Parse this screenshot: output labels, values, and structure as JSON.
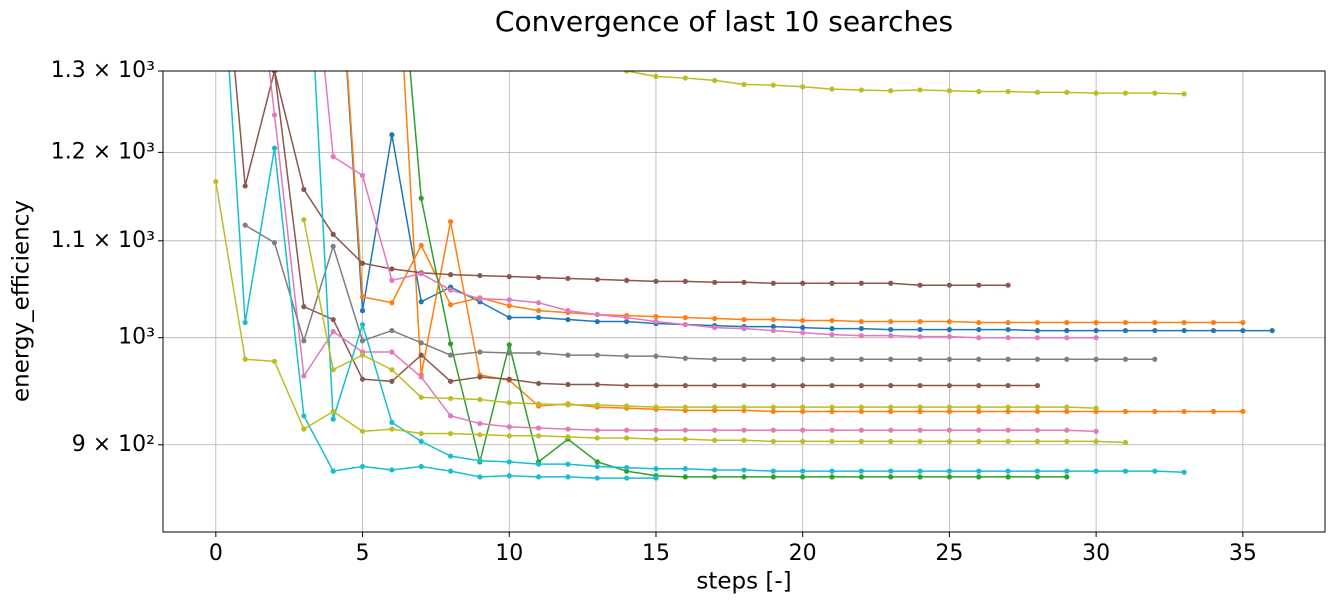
{
  "chart_data": {
    "type": "line",
    "title": "Convergence of last 10 searches",
    "xlabel": "steps [-]",
    "ylabel": "energy_efficiency",
    "yscale": "log",
    "grid": true,
    "xlim": [
      -1.8,
      37.8
    ],
    "ylim": [
      826,
      1300
    ],
    "xticks": [
      0,
      5,
      10,
      15,
      20,
      25,
      30,
      35
    ],
    "yticks": [
      {
        "value": 900,
        "label": "9 × 10²"
      },
      {
        "value": 1000,
        "label": "10³"
      },
      {
        "value": 1100,
        "label": "1.1 × 10³"
      },
      {
        "value": 1200,
        "label": "1.2 × 10³"
      },
      {
        "value": 1300,
        "label": "1.3 × 10³"
      }
    ],
    "series": [
      {
        "color": "#1f77b4",
        "x": [
          4,
          5,
          6,
          7,
          8,
          9,
          10,
          11,
          12,
          13,
          14,
          15,
          16,
          17,
          18,
          19,
          20,
          21,
          22,
          23,
          24,
          25,
          26,
          27,
          28,
          29,
          30,
          31,
          32,
          33,
          34,
          35,
          36
        ],
        "values": [
          1600,
          1027,
          1221,
          1036,
          1051,
          1036,
          1020,
          1020,
          1018,
          1016,
          1016,
          1014,
          1013,
          1012,
          1011,
          1011,
          1010,
          1009,
          1009,
          1008,
          1008,
          1008,
          1008,
          1008,
          1007,
          1007,
          1007,
          1007,
          1007,
          1007,
          1007,
          1007,
          1007
        ]
      },
      {
        "color": "#ff7f0e",
        "x": [
          4,
          5,
          6,
          7,
          8,
          9,
          10,
          11,
          12,
          13,
          14,
          15,
          16,
          17,
          18,
          19,
          20,
          21,
          22,
          23,
          24,
          25,
          26,
          27,
          28,
          29,
          30,
          31,
          32,
          33,
          34,
          35
        ],
        "values": [
          1600,
          1041,
          1035,
          1095,
          1033,
          1040,
          1032,
          1027,
          1025,
          1023,
          1022,
          1021,
          1020,
          1019,
          1018,
          1018,
          1017,
          1017,
          1016,
          1016,
          1016,
          1016,
          1015,
          1015,
          1015,
          1015,
          1015,
          1015,
          1015,
          1015,
          1015,
          1015
        ]
      },
      {
        "color": "#ff7f0e",
        "x": [
          6,
          7,
          8,
          9,
          10,
          11,
          12,
          13,
          14,
          15,
          16,
          17,
          18,
          19,
          20,
          21,
          22,
          23,
          24,
          25,
          26,
          27,
          28,
          29,
          30,
          31,
          32,
          33,
          34,
          35
        ],
        "values": [
          1600,
          964,
          1121,
          964,
          959,
          935,
          937,
          934,
          933,
          932,
          931,
          931,
          931,
          930,
          930,
          930,
          930,
          930,
          930,
          930,
          930,
          930,
          930,
          930,
          930,
          930,
          930,
          930,
          930,
          930
        ]
      },
      {
        "color": "#2ca02c",
        "x": [
          6,
          7,
          8,
          9,
          10,
          11,
          12,
          13,
          14,
          15,
          16,
          17,
          18,
          19,
          20,
          21,
          22,
          23,
          24,
          25,
          26,
          27,
          28,
          29
        ],
        "values": [
          1600,
          1147,
          994,
          885,
          993,
          885,
          905,
          885,
          877,
          873,
          872,
          872,
          872,
          872,
          872,
          872,
          872,
          872,
          872,
          872,
          872,
          872,
          872,
          872
        ]
      },
      {
        "color": "#8c564b",
        "x": [
          0,
          1,
          2,
          3,
          4,
          5,
          6,
          7,
          8,
          9,
          10,
          11,
          12,
          13,
          14,
          15,
          16,
          17,
          18,
          19,
          20,
          21,
          22,
          23,
          24,
          25,
          26,
          27
        ],
        "values": [
          1600,
          1161,
          1300,
          1157,
          1107,
          1076,
          1070,
          1066,
          1064,
          1063,
          1062,
          1061,
          1060,
          1059,
          1058,
          1057,
          1057,
          1056,
          1056,
          1055,
          1055,
          1055,
          1055,
          1055,
          1053,
          1053,
          1053,
          1053
        ]
      },
      {
        "color": "#8c564b",
        "x": [
          2,
          3,
          4,
          5,
          6,
          7,
          8,
          9,
          10,
          11,
          12,
          13,
          14,
          15,
          16,
          17,
          18,
          19,
          20,
          21,
          22,
          23,
          24,
          25,
          26,
          27,
          28
        ],
        "values": [
          1300,
          1031,
          1018,
          960,
          958,
          983,
          958,
          962,
          960,
          956,
          955,
          955,
          954,
          954,
          954,
          954,
          954,
          954,
          954,
          954,
          954,
          954,
          954,
          954,
          954,
          954,
          954
        ]
      },
      {
        "color": "#e377c2",
        "x": [
          3,
          4,
          5,
          6,
          7,
          8,
          9,
          10,
          11,
          12,
          13,
          14,
          15,
          16,
          17,
          18,
          19,
          20,
          21,
          22,
          23,
          24,
          25,
          26,
          27,
          28,
          29,
          30
        ],
        "values": [
          1600,
          1195,
          1173,
          1058,
          1065,
          1048,
          1039,
          1038,
          1035,
          1027,
          1023,
          1020,
          1016,
          1013,
          1010,
          1009,
          1007,
          1005,
          1003,
          1002,
          1002,
          1001,
          1001,
          1000,
          1000,
          1000,
          1000,
          1000
        ]
      },
      {
        "color": "#e377c2",
        "x": [
          1,
          2,
          3,
          4,
          5,
          6,
          7,
          8,
          9,
          10,
          11,
          12,
          13,
          14,
          15,
          16,
          17,
          18,
          19,
          20,
          21,
          22,
          23,
          24,
          25,
          26,
          27,
          28,
          29,
          30
        ],
        "values": [
          1600,
          1245,
          963,
          1006,
          986,
          986,
          962,
          926,
          919,
          916,
          915,
          914,
          913,
          913,
          913,
          913,
          913,
          913,
          913,
          913,
          913,
          913,
          913,
          913,
          913,
          913,
          913,
          913,
          913,
          912
        ]
      },
      {
        "color": "#7f7f7f",
        "x": [
          1,
          2,
          3,
          4,
          5,
          6,
          7,
          8,
          9,
          10,
          11,
          12,
          13,
          14,
          15,
          16,
          17,
          18,
          19,
          20,
          21,
          22,
          23,
          24,
          25,
          26,
          27,
          28,
          29,
          30,
          31,
          32
        ],
        "values": [
          1117,
          1098,
          997,
          1094,
          997,
          1007,
          995,
          983,
          986,
          985,
          985,
          983,
          983,
          982,
          982,
          980,
          979,
          979,
          979,
          979,
          979,
          979,
          979,
          979,
          979,
          979,
          979,
          979,
          979,
          979,
          979,
          979
        ]
      },
      {
        "color": "#17becf",
        "x": [
          0,
          1,
          2,
          3,
          4,
          5,
          6,
          7,
          8,
          9,
          10,
          11,
          12,
          13,
          14,
          15
        ],
        "values": [
          1600,
          1015,
          1205,
          926,
          877,
          881,
          878,
          881,
          877,
          872,
          873,
          872,
          872,
          871,
          871,
          871
        ]
      },
      {
        "color": "#17becf",
        "x": [
          3,
          4,
          5,
          6,
          7,
          8,
          9,
          10,
          11,
          12,
          13,
          14,
          15,
          16,
          17,
          18,
          19,
          20,
          21,
          22,
          23,
          24,
          25,
          26,
          27,
          28,
          29,
          30,
          31,
          32,
          33
        ],
        "values": [
          1600,
          923,
          1013,
          920,
          903,
          890,
          886,
          885,
          883,
          883,
          881,
          880,
          879,
          879,
          878,
          878,
          877,
          877,
          877,
          877,
          877,
          877,
          877,
          877,
          877,
          877,
          877,
          877,
          877,
          877,
          876
        ]
      },
      {
        "color": "#bcbd22",
        "x": [
          0,
          1,
          2,
          3,
          4,
          5,
          6,
          7,
          8,
          9,
          10,
          11,
          12,
          13,
          14,
          15,
          16,
          17,
          18,
          19,
          20,
          21,
          22,
          23,
          24,
          25,
          26,
          27,
          28,
          29,
          30,
          31
        ],
        "values": [
          1166,
          979,
          977,
          914,
          930,
          912,
          914,
          910,
          910,
          909,
          908,
          908,
          907,
          906,
          906,
          905,
          905,
          904,
          904,
          903,
          903,
          903,
          903,
          903,
          903,
          903,
          903,
          903,
          903,
          903,
          903,
          902
        ]
      },
      {
        "color": "#bcbd22",
        "x": [
          3,
          4,
          5,
          6,
          7,
          8,
          9,
          10,
          11,
          12,
          13,
          14,
          15,
          16,
          17,
          18,
          19,
          20,
          21,
          22,
          23,
          24,
          25,
          26,
          27,
          28,
          29,
          30
        ],
        "values": [
          1123,
          969,
          983,
          969,
          943,
          942,
          941,
          938,
          937,
          936,
          936,
          935,
          934,
          934,
          934,
          934,
          934,
          934,
          934,
          934,
          934,
          934,
          934,
          934,
          934,
          934,
          934,
          933
        ]
      },
      {
        "color": "#bcbd22",
        "x": [
          14,
          15,
          16,
          17,
          18,
          19,
          20,
          21,
          22,
          23,
          24,
          25,
          26,
          27,
          28,
          29,
          30,
          31,
          32,
          33
        ],
        "values": [
          1300,
          1293,
          1291,
          1288,
          1283,
          1282,
          1280,
          1277,
          1276,
          1275,
          1276,
          1275,
          1274,
          1274,
          1273,
          1273,
          1272,
          1272,
          1272,
          1271
        ]
      }
    ]
  }
}
